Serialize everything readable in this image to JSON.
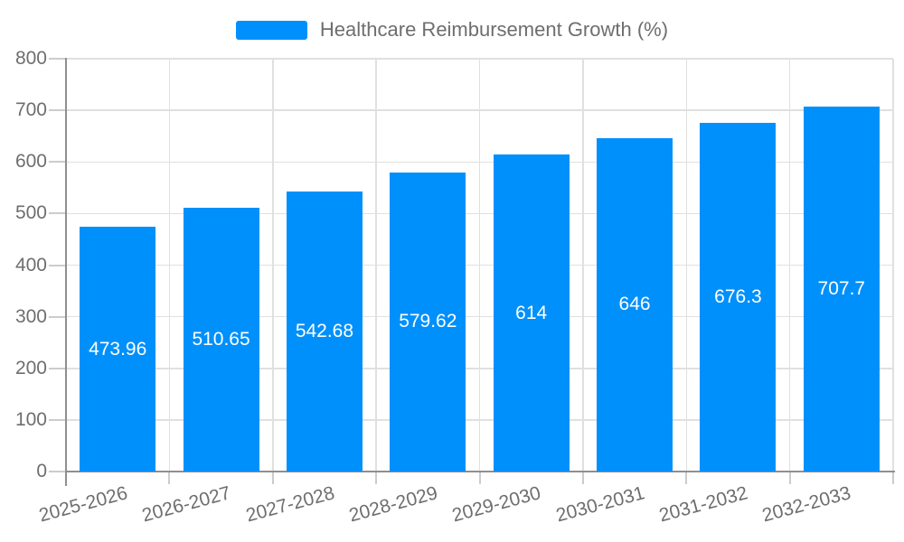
{
  "chart_data": {
    "type": "bar",
    "title": "Healthcare Reimbursement Growth (%)",
    "categories": [
      "2025-2026",
      "2026-2027",
      "2027-2028",
      "2028-2029",
      "2029-2030",
      "2030-2031",
      "2031-2032",
      "2032-2033"
    ],
    "values": [
      473.96,
      510.65,
      542.68,
      579.62,
      614,
      646,
      676.3,
      707.7
    ],
    "data_labels": [
      "473.96",
      "510.65",
      "542.68",
      "579.62",
      "614",
      "646",
      "676.3",
      "707.7"
    ],
    "xlabel": "",
    "ylabel": "",
    "ylim": [
      0,
      800
    ],
    "ytick_interval": 100,
    "yticks": [
      "0",
      "100",
      "200",
      "300",
      "400",
      "500",
      "600",
      "700",
      "800"
    ],
    "grid": true,
    "legend_position": "top",
    "series_name": "Healthcare Reimbursement Growth (%)"
  },
  "style": {
    "bar_color": "#0090fb",
    "background_color": "#ffffff",
    "grid_color": "#e0e0e0",
    "axis_line_color": "#8f8f8f",
    "tick_color": "#cccccc",
    "label_color": "#6e6e6e",
    "data_label_color": "#ffffff"
  }
}
